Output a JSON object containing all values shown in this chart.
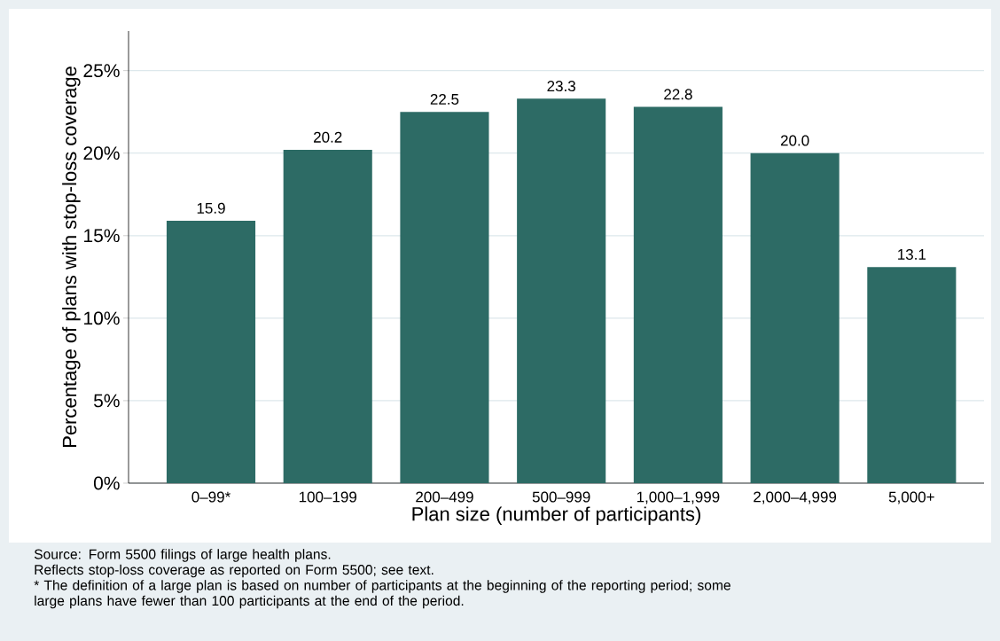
{
  "chart_data": {
    "type": "bar",
    "xlabel": "Plan size (number of participants)",
    "ylabel": "Percentage of plans with stop-loss coverage",
    "categories": [
      "0–99*",
      "100–199",
      "200–499",
      "500–999",
      "1,000–1,999",
      "2,000–4,999",
      "5,000+"
    ],
    "values": [
      15.9,
      20.2,
      22.5,
      23.3,
      22.8,
      20.0,
      13.1
    ],
    "value_labels": [
      "15.9",
      "20.2",
      "22.5",
      "23.3",
      "22.8",
      "20.0",
      "13.1"
    ],
    "color": "#2d6b65",
    "ylim": [
      0,
      27.4
    ],
    "yticks": [
      {
        "value": 0,
        "label": "0%"
      },
      {
        "value": 5,
        "label": "5%"
      },
      {
        "value": 10,
        "label": "10%"
      },
      {
        "value": 15,
        "label": "15%"
      },
      {
        "value": 20,
        "label": "20%"
      },
      {
        "value": 25,
        "label": "25%"
      }
    ],
    "grid": "y",
    "annotations": [
      "Source: Form 5500 filings of large health plans.",
      "Reflects stop-loss coverage as reported on Form 5500; see text.",
      "* The definition of a large plan is based on number of participants at the beginning of the reporting period; some large plans have fewer than 100 participants at the end of the period."
    ]
  }
}
